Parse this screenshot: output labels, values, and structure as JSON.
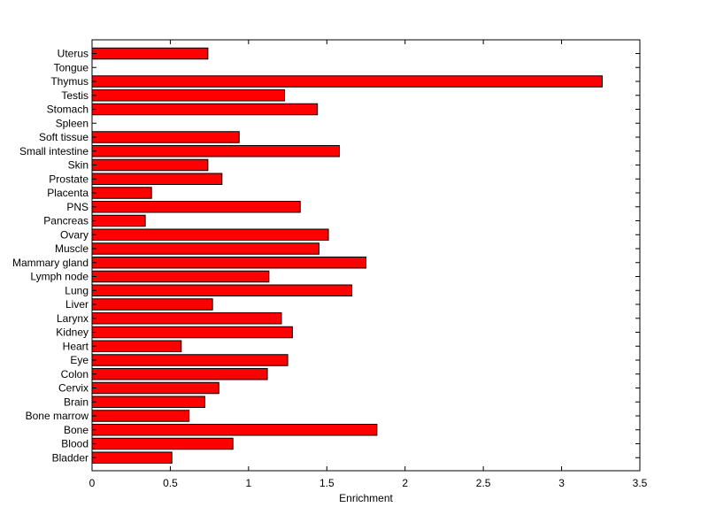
{
  "chart_data": {
    "type": "bar",
    "orientation": "horizontal",
    "title": "",
    "xlabel": "Enrichment",
    "ylabel": "",
    "xlim": [
      0,
      3.5
    ],
    "xticks": [
      0,
      0.5,
      1,
      1.5,
      2,
      2.5,
      3,
      3.5
    ],
    "xtick_labels": [
      "0",
      "0.5",
      "1",
      "1.5",
      "2",
      "2.5",
      "3",
      "3.5"
    ],
    "grid": false,
    "legend": "none",
    "bar_color": "#ff0000",
    "categories": [
      "Uterus",
      "Tongue",
      "Thymus",
      "Testis",
      "Stomach",
      "Spleen",
      "Soft tissue",
      "Small intestine",
      "Skin",
      "Prostate",
      "Placenta",
      "PNS",
      "Pancreas",
      "Ovary",
      "Muscle",
      "Mammary gland",
      "Lymph node",
      "Lung",
      "Liver",
      "Larynx",
      "Kidney",
      "Heart",
      "Eye",
      "Colon",
      "Cervix",
      "Brain",
      "Bone marrow",
      "Bone",
      "Blood",
      "Bladder"
    ],
    "values": [
      0.74,
      0,
      3.26,
      1.23,
      1.44,
      0,
      0.94,
      1.58,
      0.74,
      0.83,
      0.38,
      1.33,
      0.34,
      1.51,
      1.45,
      1.75,
      1.13,
      1.66,
      0.77,
      1.21,
      1.28,
      0.57,
      1.25,
      1.12,
      0.81,
      0.72,
      0.62,
      1.82,
      0.9,
      0.51
    ]
  }
}
